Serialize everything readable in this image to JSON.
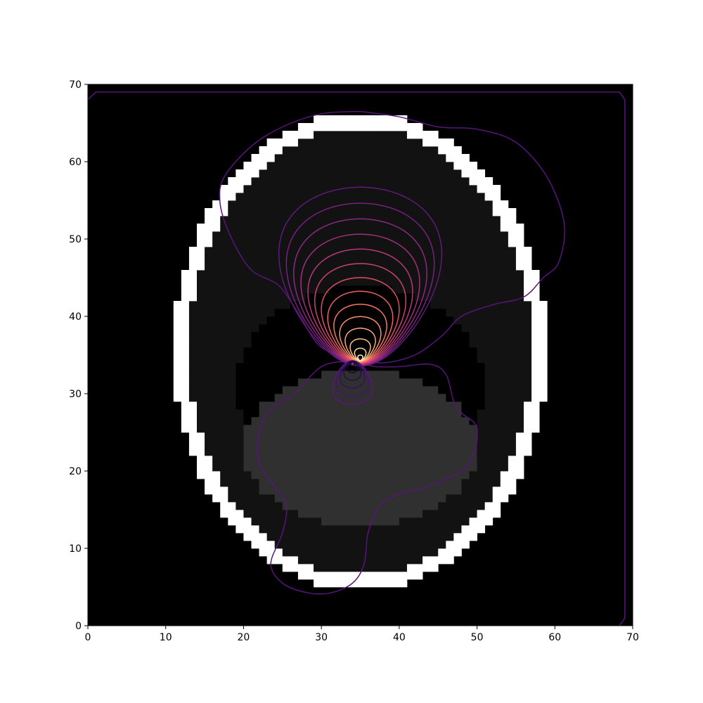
{
  "chart_data": {
    "type": "heatmap",
    "title": "",
    "xlabel": "",
    "ylabel": "",
    "xlim": [
      0,
      70
    ],
    "ylim": [
      0,
      70
    ],
    "x_ticks": [
      0,
      10,
      20,
      30,
      40,
      50,
      60,
      70
    ],
    "y_ticks": [
      0,
      10,
      20,
      30,
      40,
      50,
      60,
      70
    ],
    "x_tick_labels": [
      "0",
      "10",
      "20",
      "30",
      "40",
      "50",
      "60",
      "70"
    ],
    "y_tick_labels": [
      "0",
      "10",
      "20",
      "30",
      "40",
      "50",
      "60",
      "70"
    ],
    "grid": false,
    "image": {
      "colormap": "gray",
      "background_value": 0.0,
      "shell": {
        "center": [
          35,
          35.5
        ],
        "outer_radius": [
          24,
          31
        ],
        "thickness": 2,
        "value": 1.0
      },
      "interior": {
        "value": 0.07
      },
      "dark_region": {
        "center": [
          35,
          31
        ],
        "radius": [
          16,
          13
        ],
        "value": 0.0
      },
      "inner_disc": {
        "center": [
          35,
          23
        ],
        "radius": [
          15,
          10
        ],
        "value": 0.19
      }
    },
    "contours": {
      "colormap": "magma",
      "source_positive": [
        35,
        36.5
      ],
      "source_negative": [
        33.5,
        32.5
      ],
      "levels_positive": 14,
      "levels_negative": 6,
      "outer_level_curve": [
        [
          35,
          66.5
        ],
        [
          40,
          65.8
        ],
        [
          45,
          64.5
        ],
        [
          50,
          64.2
        ],
        [
          55,
          62.5
        ],
        [
          59,
          58
        ],
        [
          61.2,
          52
        ],
        [
          60.5,
          47
        ],
        [
          58.5,
          45
        ],
        [
          56,
          42.5
        ],
        [
          52,
          41.5
        ],
        [
          48,
          40
        ],
        [
          45.5,
          37.5
        ],
        [
          42,
          35
        ],
        [
          38,
          34
        ],
        [
          35,
          34.5
        ],
        [
          30,
          36
        ],
        [
          27,
          40.5
        ],
        [
          24.5,
          44
        ],
        [
          21,
          46
        ],
        [
          18.5,
          50
        ],
        [
          17,
          54.5
        ],
        [
          17.5,
          58
        ],
        [
          21,
          62
        ],
        [
          25,
          64.5
        ],
        [
          30,
          66.2
        ],
        [
          35,
          66.5
        ]
      ],
      "lower_level_curve": [
        [
          35,
          34
        ],
        [
          37,
          33.5
        ],
        [
          40,
          33.5
        ],
        [
          44,
          33.8
        ],
        [
          46,
          32.5
        ],
        [
          47,
          29
        ],
        [
          48,
          27.5
        ],
        [
          50,
          25.5
        ],
        [
          49,
          21
        ],
        [
          45,
          18.5
        ],
        [
          40,
          17
        ],
        [
          37.5,
          15.5
        ],
        [
          36,
          12
        ],
        [
          35.5,
          8
        ],
        [
          34,
          5.5
        ],
        [
          31,
          4.2
        ],
        [
          28,
          4.3
        ],
        [
          25,
          5.5
        ],
        [
          23.5,
          8
        ],
        [
          25,
          12
        ],
        [
          25.5,
          15.5
        ],
        [
          24,
          18
        ],
        [
          22,
          21
        ],
        [
          22,
          25
        ],
        [
          23.5,
          28
        ],
        [
          26.5,
          30
        ],
        [
          30,
          33.5
        ],
        [
          33.5,
          34.2
        ],
        [
          35,
          34
        ]
      ],
      "frame_level_curve": [
        [
          0,
          68
        ],
        [
          1,
          69
        ],
        [
          68.3,
          69
        ],
        [
          69,
          68
        ],
        [
          69,
          1
        ],
        [
          68.3,
          0
        ]
      ]
    }
  }
}
